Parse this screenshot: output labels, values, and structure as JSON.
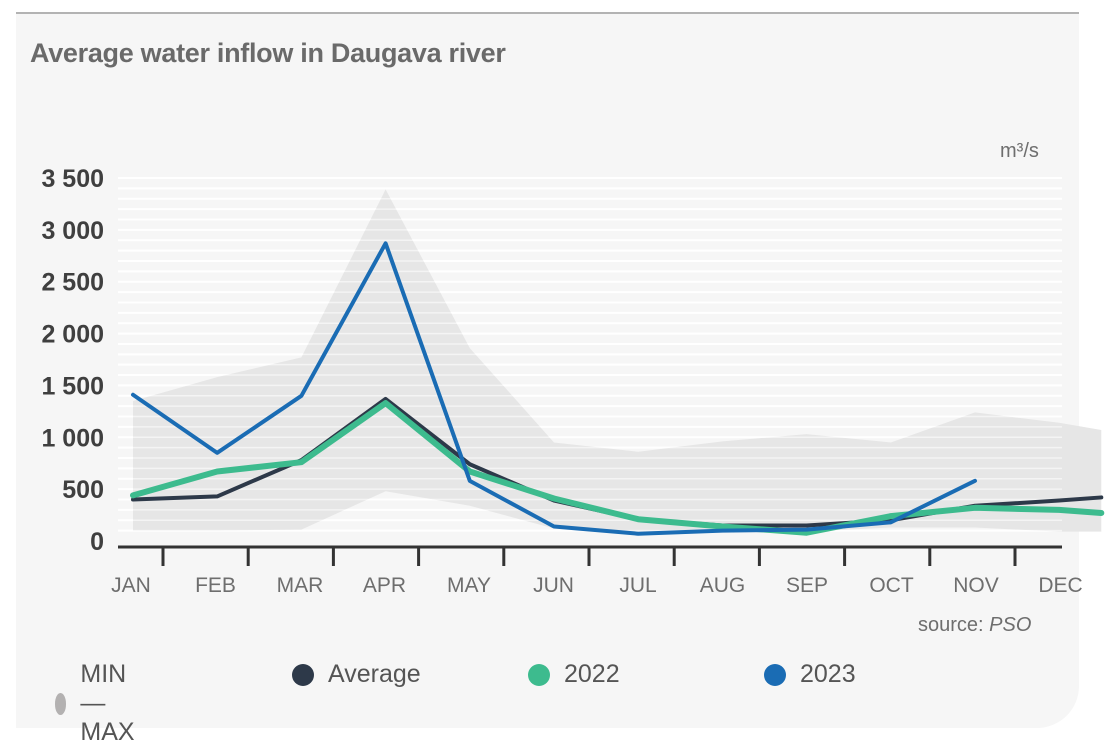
{
  "chart_data": {
    "type": "line",
    "title": "Average water inflow in Daugava river",
    "unit_label": "m³/s",
    "source_prefix": "source: ",
    "source_name": "PSO",
    "categories": [
      "JAN",
      "FEB",
      "MAR",
      "APR",
      "MAY",
      "JUN",
      "JUL",
      "AUG",
      "SEP",
      "OCT",
      "NOV",
      "DEC"
    ],
    "y_ticks": [
      {
        "value": 3500,
        "label": "3 500"
      },
      {
        "value": 3000,
        "label": "3 000"
      },
      {
        "value": 2500,
        "label": "2 500"
      },
      {
        "value": 2000,
        "label": "2 000"
      },
      {
        "value": 1500,
        "label": "1 500"
      },
      {
        "value": 1000,
        "label": "1 000"
      },
      {
        "value": 500,
        "label": "500"
      },
      {
        "value": 0,
        "label": "0"
      }
    ],
    "ylim": [
      0,
      3500
    ],
    "grid": true,
    "band": {
      "name": "MIN—MAX",
      "color": "#e6e6e6",
      "x": [
        0,
        1,
        2,
        3,
        4,
        5,
        6,
        7,
        8,
        9,
        10,
        11,
        11.5
      ],
      "min": [
        100,
        100,
        110,
        480,
        340,
        120,
        90,
        90,
        90,
        130,
        130,
        90,
        90
      ],
      "max": [
        1350,
        1580,
        1770,
        3390,
        1860,
        950,
        860,
        960,
        1030,
        950,
        1240,
        1140,
        1070
      ]
    },
    "series": [
      {
        "name": "Average",
        "color": "#2d3949",
        "width": 4,
        "x": [
          0,
          1,
          2,
          3,
          4,
          5,
          6,
          7,
          8,
          9,
          10,
          11,
          11.5
        ],
        "values": [
          400,
          430,
          780,
          1370,
          740,
          390,
          210,
          150,
          150,
          200,
          340,
          390,
          420
        ]
      },
      {
        "name": "2022",
        "color": "#3dbb8e",
        "width": 6,
        "x": [
          0,
          1,
          2,
          3,
          4,
          5,
          6,
          7,
          8,
          9,
          10,
          11,
          11.5
        ],
        "values": [
          440,
          670,
          760,
          1330,
          670,
          410,
          210,
          140,
          80,
          240,
          320,
          300,
          270
        ]
      },
      {
        "name": "2023",
        "color": "#1a6cb4",
        "width": 4,
        "x": [
          0,
          1,
          2,
          3,
          4,
          5,
          6,
          7,
          8,
          9,
          10
        ],
        "values": [
          1410,
          850,
          1400,
          2870,
          580,
          140,
          70,
          100,
          110,
          180,
          580
        ]
      }
    ]
  },
  "legend": [
    {
      "label": "MIN—MAX",
      "color": "#b3b1b1"
    },
    {
      "label": "Average",
      "color": "#2d3949"
    },
    {
      "label": "2022",
      "color": "#3dbb8e"
    },
    {
      "label": "2023",
      "color": "#1a6cb4"
    }
  ]
}
